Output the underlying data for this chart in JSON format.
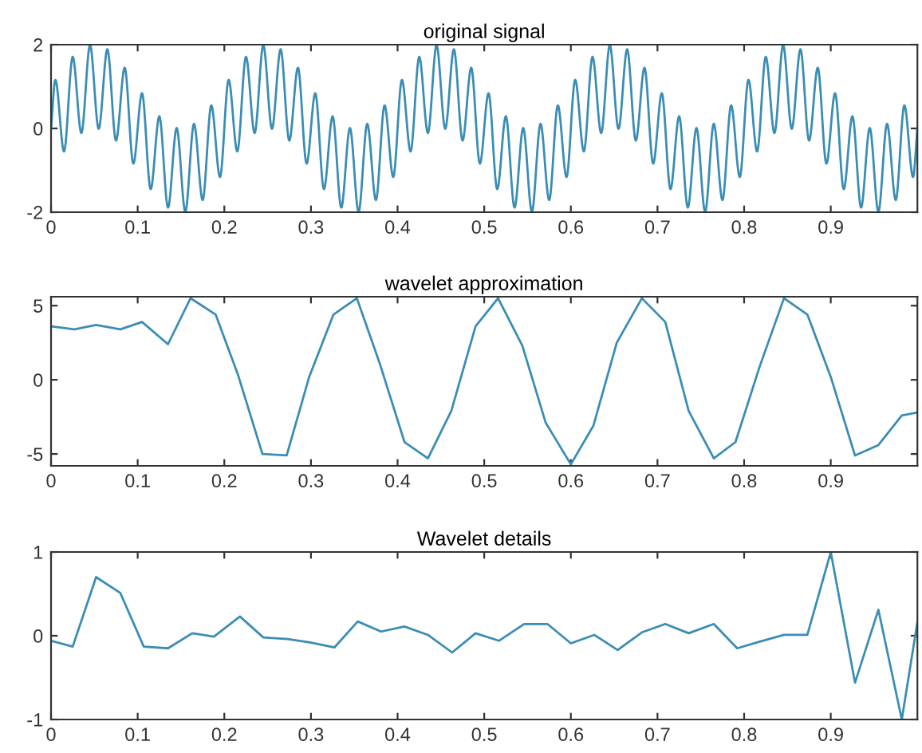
{
  "chart_data": [
    {
      "type": "line",
      "title": "original signal",
      "xlim": [
        0,
        1
      ],
      "xticks": [
        0,
        0.1,
        0.2,
        0.3,
        0.4,
        0.5,
        0.6,
        0.7,
        0.8,
        0.9
      ],
      "ylim": [
        -2,
        2
      ],
      "yticks": [
        -2,
        0,
        2
      ],
      "marker": "none",
      "line_style": "solid",
      "series": [
        {
          "color": "#3a8db5",
          "x": [
            0,
            0.005,
            0.015,
            0.025,
            0.035,
            0.045,
            0.055,
            0.065,
            0.075,
            0.085,
            0.095,
            0.105,
            0.115,
            0.125,
            0.135,
            0.145,
            0.155,
            0.165,
            0.175,
            0.185,
            0.195,
            0.205,
            0.215,
            0.225,
            0.235,
            0.245,
            0.255,
            0.265,
            0.275,
            0.285,
            0.295,
            0.305,
            0.315,
            0.325,
            0.335,
            0.345,
            0.355,
            0.365,
            0.375,
            0.385,
            0.395,
            0.405,
            0.415,
            0.425,
            0.435,
            0.445,
            0.455,
            0.465,
            0.475,
            0.485,
            0.495,
            0.505,
            0.515,
            0.525,
            0.535,
            0.545,
            0.555,
            0.565,
            0.575,
            0.585,
            0.595,
            0.605,
            0.615,
            0.625,
            0.635,
            0.645,
            0.655,
            0.665,
            0.675,
            0.685,
            0.695,
            0.705,
            0.715,
            0.725,
            0.735,
            0.745,
            0.755,
            0.765,
            0.775,
            0.785,
            0.795,
            0.805,
            0.815,
            0.825,
            0.835,
            0.845,
            0.855,
            0.865,
            0.875,
            0.885,
            0.895,
            0.905,
            0.915,
            0.925,
            0.935,
            0.945,
            0.955,
            0.965,
            0.975,
            0.985,
            0.995,
            1
          ],
          "values": [
            0,
            1.16,
            -0.55,
            1.71,
            -0.11,
            1.99,
            -0.01,
            1.89,
            -0.29,
            1.45,
            -0.84,
            0.84,
            -1.45,
            0.29,
            -1.89,
            0.01,
            -1.99,
            0.11,
            -1.71,
            0.55,
            -1.16,
            1.16,
            -0.55,
            1.71,
            -0.11,
            1.99,
            -0.01,
            1.89,
            -0.29,
            1.45,
            -0.84,
            0.84,
            -1.45,
            0.29,
            -1.89,
            0.01,
            -1.99,
            0.11,
            -1.71,
            0.55,
            -1.16,
            1.16,
            -0.55,
            1.71,
            -0.11,
            1.99,
            -0.01,
            1.89,
            -0.29,
            1.45,
            -0.84,
            0.84,
            -1.45,
            0.29,
            -1.89,
            0.01,
            -1.99,
            0.11,
            -1.71,
            0.55,
            -1.16,
            1.16,
            -0.55,
            1.71,
            -0.11,
            1.99,
            -0.01,
            1.89,
            -0.29,
            1.45,
            -0.84,
            0.84,
            -1.45,
            0.29,
            -1.89,
            0.01,
            -1.99,
            0.11,
            -1.71,
            0.55,
            -1.16,
            1.16,
            -0.55,
            1.71,
            -0.11,
            1.99,
            -0.01,
            1.89,
            -0.29,
            1.45,
            -0.84,
            0.84,
            -1.45,
            0.29,
            -1.89,
            0.01,
            -1.99,
            0.11,
            -1.71,
            0.55,
            -1.16,
            0
          ]
        }
      ]
    },
    {
      "type": "line",
      "title": "wavelet approximation",
      "xlim": [
        0,
        1
      ],
      "xticks": [
        0,
        0.1,
        0.2,
        0.3,
        0.4,
        0.5,
        0.6,
        0.7,
        0.8,
        0.9
      ],
      "ylim": [
        -5.8,
        5.6
      ],
      "yticks": [
        -5,
        0,
        5
      ],
      "marker": "none",
      "line_style": "solid",
      "series": [
        {
          "color": "#3a8db5",
          "x": [
            0,
            0.027,
            0.052,
            0.08,
            0.105,
            0.135,
            0.161,
            0.19,
            0.216,
            0.244,
            0.272,
            0.298,
            0.326,
            0.353,
            0.38,
            0.408,
            0.435,
            0.462,
            0.49,
            0.516,
            0.544,
            0.571,
            0.6,
            0.626,
            0.653,
            0.682,
            0.709,
            0.736,
            0.765,
            0.79,
            0.818,
            0.846,
            0.873,
            0.9,
            0.928,
            0.955,
            0.982,
            1
          ],
          "values": [
            3.6,
            3.4,
            3.7,
            3.4,
            3.9,
            2.4,
            5.5,
            4.4,
            0.3,
            -5.0,
            -5.1,
            0.2,
            4.4,
            5.5,
            1.0,
            -4.2,
            -5.3,
            -2.1,
            3.6,
            5.5,
            2.3,
            -2.9,
            -5.7,
            -3.1,
            2.5,
            5.5,
            3.9,
            -2.1,
            -5.3,
            -4.2,
            0.9,
            5.5,
            4.4,
            0.2,
            -5.1,
            -4.4,
            -2.4,
            -2.2
          ]
        }
      ]
    },
    {
      "type": "line",
      "title": "Wavelet details",
      "xlim": [
        0,
        1
      ],
      "xticks": [
        0,
        0.1,
        0.2,
        0.3,
        0.4,
        0.5,
        0.6,
        0.7,
        0.8,
        0.9
      ],
      "ylim": [
        -1,
        1
      ],
      "yticks": [
        -1,
        0,
        1
      ],
      "marker": "none",
      "line_style": "solid",
      "series": [
        {
          "color": "#3a8db5",
          "x": [
            0,
            0.025,
            0.052,
            0.08,
            0.107,
            0.135,
            0.163,
            0.188,
            0.218,
            0.245,
            0.273,
            0.299,
            0.327,
            0.354,
            0.381,
            0.408,
            0.435,
            0.463,
            0.49,
            0.517,
            0.546,
            0.573,
            0.6,
            0.627,
            0.654,
            0.682,
            0.709,
            0.736,
            0.765,
            0.792,
            0.818,
            0.846,
            0.873,
            0.9,
            0.928,
            0.955,
            0.982,
            1
          ],
          "values": [
            -0.06,
            -0.13,
            0.7,
            0.51,
            -0.13,
            -0.15,
            0.03,
            -0.01,
            0.23,
            -0.02,
            -0.04,
            -0.08,
            -0.14,
            0.17,
            0.05,
            0.11,
            0.01,
            -0.2,
            0.03,
            -0.06,
            0.14,
            0.14,
            -0.09,
            0.01,
            -0.17,
            0.04,
            0.14,
            0.03,
            0.14,
            -0.15,
            -0.07,
            0.01,
            0.01,
            1.0,
            -0.56,
            0.31,
            -1.0,
            0.16
          ]
        }
      ]
    }
  ]
}
